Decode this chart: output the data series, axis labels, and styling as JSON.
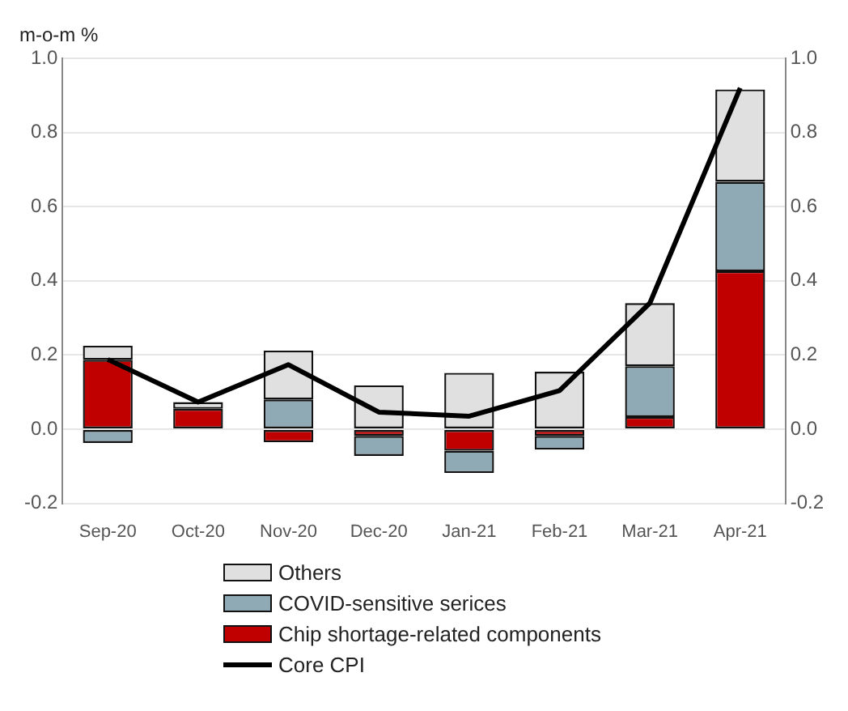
{
  "chart_data": {
    "type": "bar",
    "stacked": true,
    "ylabel": "m-o-m %",
    "categories": [
      "Sep-20",
      "Oct-20",
      "Nov-20",
      "Dec-20",
      "Jan-21",
      "Feb-21",
      "Mar-21",
      "Apr-21"
    ],
    "series": [
      {
        "name": "Chip shortage-related components",
        "color": "#c00000",
        "values": [
          0.187,
          0.055,
          -0.035,
          -0.018,
          -0.058,
          -0.018,
          0.033,
          0.426
        ]
      },
      {
        "name": "COVID-sensitive serices",
        "color": "#8fa9b5",
        "values": [
          -0.037,
          0,
          0.08,
          -0.054,
          -0.06,
          -0.037,
          0.137,
          0.241
        ]
      },
      {
        "name": "Others",
        "color": "#e0e0e0",
        "values": [
          0.038,
          0.018,
          0.132,
          0.118,
          0.152,
          0.155,
          0.17,
          0.249
        ]
      },
      {
        "name": "Core CPI",
        "type": "line",
        "color": "#000000",
        "values": [
          0.188,
          0.073,
          0.174,
          0.046,
          0.035,
          0.104,
          0.34,
          0.92
        ]
      }
    ],
    "ylim": [
      -0.2,
      1.0
    ],
    "yticks": [
      -0.2,
      {
        "value": 0,
        "label": "0.0"
      },
      0.2,
      0.4,
      0.6,
      0.8,
      {
        "value": 1,
        "label": "1.0"
      }
    ],
    "y2lim": [
      -0.2,
      1.0
    ],
    "y2ticks": [
      -0.2,
      {
        "value": 0,
        "label": "0.0"
      },
      0.2,
      0.4,
      0.6,
      0.8,
      {
        "value": 1,
        "label": "1.0"
      }
    ],
    "grid": "y",
    "legend": "bottom"
  }
}
